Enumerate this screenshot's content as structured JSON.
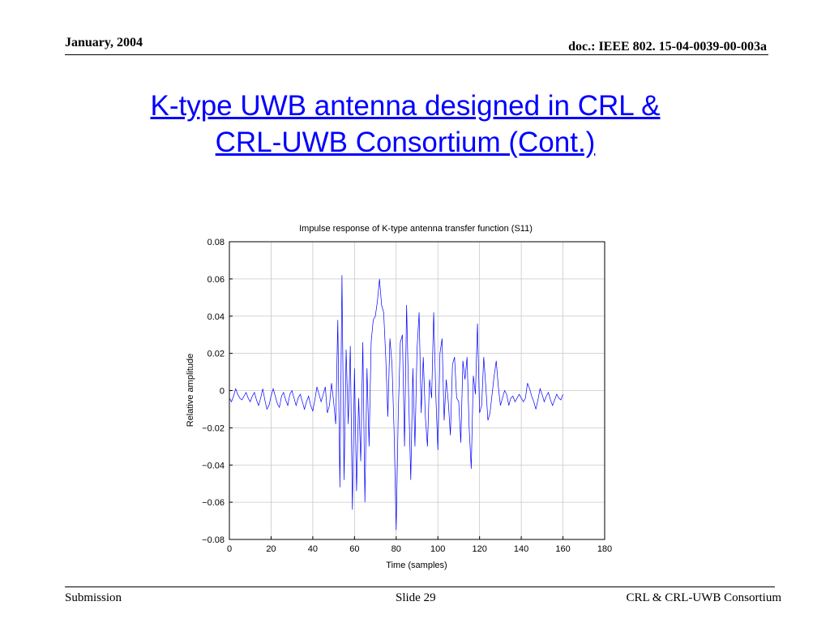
{
  "header": {
    "date": "January, 2004",
    "doc_id": "doc.: IEEE 802. 15-04-0039-00-003a"
  },
  "slide": {
    "title_line1": "K-type UWB antenna designed in CRL &",
    "title_line2": "CRL-UWB Consortium (Cont.)"
  },
  "chart_data": {
    "type": "line",
    "title": "Impulse response of K-type antenna transfer function (S11)",
    "xlabel": "Time (samples)",
    "ylabel": "Relative amplitude",
    "xlim": [
      0,
      180
    ],
    "ylim": [
      -0.08,
      0.08
    ],
    "xticks": [
      0,
      20,
      40,
      60,
      80,
      100,
      120,
      140,
      160,
      180
    ],
    "xtick_labels": [
      "0",
      "20",
      "40",
      "60",
      "80",
      "100",
      "120",
      "140",
      "160",
      "180"
    ],
    "yticks": [
      0.08,
      0.06,
      0.04,
      0.02,
      0,
      -0.02,
      -0.04,
      -0.06,
      -0.08
    ],
    "ytick_labels": [
      "0.08",
      "0.06",
      "0.04",
      "0.02",
      "0",
      "−0.02",
      "−0.04",
      "−0.06",
      "−0.08"
    ],
    "grid": true,
    "line_color": "#0000ff",
    "series": [
      {
        "x": [
          0,
          1,
          2,
          3,
          4,
          5,
          6,
          7,
          8,
          9,
          10,
          11,
          12,
          13,
          14,
          15,
          16,
          17,
          18,
          19,
          20,
          21,
          22,
          23,
          24,
          25,
          26,
          27,
          28,
          29,
          30,
          31,
          32,
          33,
          34,
          35,
          36,
          37,
          38,
          39,
          40,
          41,
          42,
          43,
          44,
          45,
          46,
          47,
          48,
          49,
          50,
          51,
          52,
          53,
          54,
          55,
          56,
          57,
          58,
          59,
          60,
          61,
          62,
          63,
          64,
          65,
          66,
          67,
          68,
          69,
          70,
          71,
          72,
          73,
          74,
          75,
          76,
          77,
          78,
          79,
          80,
          81,
          82,
          83,
          84,
          85,
          86,
          87,
          88,
          89,
          90,
          91,
          92,
          93,
          94,
          95,
          96,
          97,
          98,
          99,
          100,
          101,
          102,
          103,
          104,
          105,
          106,
          107,
          108,
          109,
          110,
          111,
          112,
          113,
          114,
          115,
          116,
          117,
          118,
          119,
          120,
          121,
          122,
          123,
          124,
          125,
          126,
          127,
          128,
          129,
          130,
          131,
          132,
          133,
          134,
          135,
          136,
          137,
          138,
          139,
          140,
          141,
          142,
          143,
          144,
          145,
          146,
          147,
          148,
          149,
          150,
          151,
          152,
          153,
          154,
          155,
          156,
          157,
          158,
          159,
          160
        ],
        "y": [
          -0.004,
          -0.006,
          -0.003,
          0.001,
          -0.002,
          -0.004,
          -0.005,
          -0.003,
          -0.001,
          -0.004,
          -0.006,
          -0.003,
          -0.001,
          -0.005,
          -0.008,
          -0.004,
          0.001,
          -0.005,
          -0.01,
          -0.008,
          -0.003,
          0.001,
          -0.003,
          -0.007,
          -0.009,
          -0.003,
          -0.001,
          -0.005,
          -0.008,
          -0.002,
          0.0,
          -0.004,
          -0.008,
          -0.004,
          -0.002,
          -0.006,
          -0.01,
          -0.006,
          -0.003,
          -0.008,
          -0.011,
          -0.005,
          0.002,
          -0.002,
          -0.006,
          -0.002,
          0.002,
          -0.012,
          -0.008,
          0.004,
          -0.006,
          -0.018,
          0.038,
          -0.052,
          0.062,
          -0.048,
          0.022,
          -0.018,
          0.024,
          -0.064,
          0.012,
          -0.054,
          -0.004,
          -0.038,
          0.026,
          -0.06,
          0.012,
          -0.03,
          0.026,
          0.038,
          0.04,
          0.048,
          0.06,
          0.046,
          0.042,
          0.018,
          -0.014,
          0.028,
          0.014,
          -0.022,
          -0.075,
          -0.012,
          0.026,
          0.03,
          -0.03,
          0.046,
          -0.004,
          -0.048,
          0.012,
          -0.03,
          0.022,
          0.042,
          -0.012,
          0.018,
          -0.014,
          -0.03,
          0.006,
          -0.004,
          0.042,
          -0.002,
          -0.032,
          0.02,
          0.028,
          -0.016,
          0.006,
          -0.006,
          -0.024,
          0.014,
          0.018,
          -0.004,
          -0.006,
          -0.028,
          0.016,
          0.006,
          0.018,
          -0.02,
          -0.042,
          0.008,
          -0.002,
          0.036,
          -0.012,
          -0.008,
          0.018,
          0.002,
          -0.016,
          -0.012,
          -0.002,
          0.008,
          0.016,
          0.002,
          -0.008,
          -0.004,
          0.0,
          -0.002,
          -0.008,
          -0.004,
          -0.003,
          -0.006,
          -0.004,
          -0.002,
          -0.004,
          -0.006,
          -0.004,
          0.004,
          0.001,
          -0.003,
          -0.006,
          -0.01,
          -0.005,
          0.001,
          -0.002,
          -0.006,
          -0.003,
          -0.001,
          -0.005,
          -0.008,
          -0.005,
          -0.002,
          -0.004,
          -0.005,
          -0.002
        ]
      }
    ]
  },
  "footer": {
    "left": "Submission",
    "center": "Slide 29",
    "right": "CRL & CRL-UWB Consortium"
  }
}
